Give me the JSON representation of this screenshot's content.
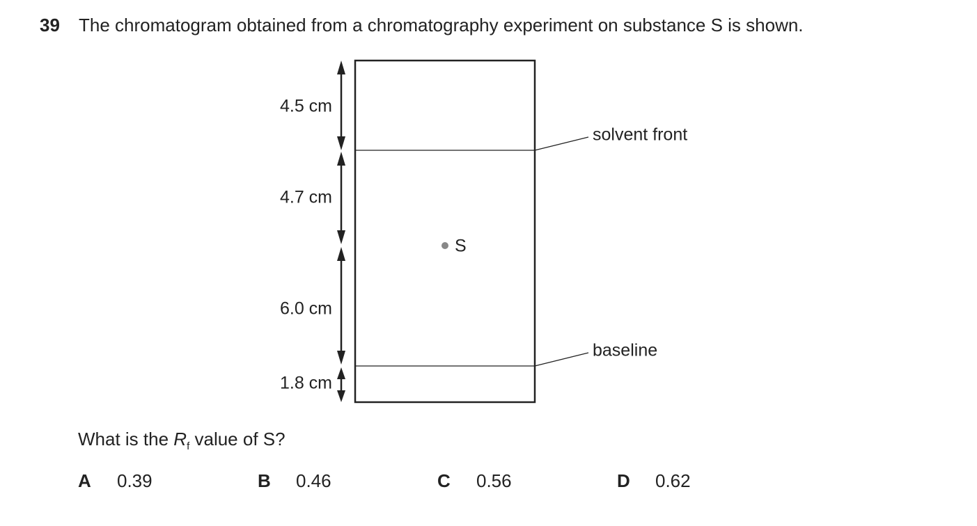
{
  "question": {
    "number": "39",
    "text": "The chromatogram obtained from a chromatography experiment on substance S is shown."
  },
  "diagram": {
    "measurements": [
      "4.5 cm",
      "4.7 cm",
      "6.0 cm",
      "1.8 cm"
    ],
    "spot_label": "S",
    "solvent_front_label": "solvent front",
    "baseline_label": "baseline"
  },
  "prompt": {
    "start": "What is the",
    "symbol": "R",
    "subscript": "f",
    "end": "value of S?"
  },
  "options": [
    {
      "letter": "A",
      "value": "0.39"
    },
    {
      "letter": "B",
      "value": "0.46"
    },
    {
      "letter": "C",
      "value": "0.56"
    },
    {
      "letter": "D",
      "value": "0.62"
    }
  ]
}
